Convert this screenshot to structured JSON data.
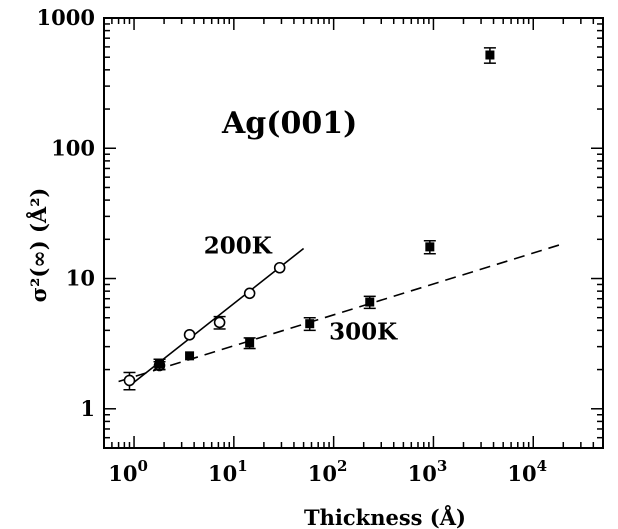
{
  "chart_data": {
    "type": "scatter",
    "title": "Ag(001)",
    "xlabel": "Thickness (Å)",
    "ylabel": "σ²(∞) (Å²)",
    "xscale": "log",
    "yscale": "log",
    "xlim": [
      0.5,
      50000
    ],
    "ylim": [
      0.5,
      1000
    ],
    "grid": false,
    "x_ticks": [
      {
        "value": 1,
        "mantissa": "10",
        "exp": "0"
      },
      {
        "value": 10,
        "mantissa": "10",
        "exp": "1"
      },
      {
        "value": 100,
        "mantissa": "10",
        "exp": "2"
      },
      {
        "value": 1000,
        "mantissa": "10",
        "exp": "3"
      },
      {
        "value": 10000,
        "mantissa": "10",
        "exp": "4"
      }
    ],
    "y_ticks": [
      {
        "value": 1,
        "label": "1"
      },
      {
        "value": 10,
        "label": "10"
      },
      {
        "value": 100,
        "label": "100"
      },
      {
        "value": 1000,
        "label": "1000"
      }
    ],
    "series": [
      {
        "name": "200K",
        "marker": "open-circle",
        "points": [
          {
            "x": 0.9,
            "y": 1.65,
            "err": 0.25
          },
          {
            "x": 1.8,
            "y": 2.15,
            "err": 0.15
          },
          {
            "x": 3.6,
            "y": 3.7,
            "err": 0
          },
          {
            "x": 7.2,
            "y": 4.6,
            "err": 0.5
          },
          {
            "x": 14.4,
            "y": 7.7,
            "err": 0
          },
          {
            "x": 28.8,
            "y": 12.1,
            "err": 0
          }
        ],
        "fit": {
          "style": "solid",
          "x": [
            0.9,
            50
          ],
          "y": [
            1.5,
            17
          ]
        },
        "label_at": {
          "x": 5,
          "y": 15.5
        }
      },
      {
        "name": "300K",
        "marker": "filled-square",
        "points": [
          {
            "x": 1.8,
            "y": 2.2,
            "err": 0.2
          },
          {
            "x": 3.6,
            "y": 2.55,
            "err": 0
          },
          {
            "x": 14.4,
            "y": 3.2,
            "err": 0.3
          },
          {
            "x": 57.6,
            "y": 4.5,
            "err": 0.5
          },
          {
            "x": 230,
            "y": 6.6,
            "err": 0.7
          },
          {
            "x": 920,
            "y": 17.5,
            "err": 2
          },
          {
            "x": 3680,
            "y": 520,
            "err": 70
          }
        ],
        "fit": {
          "style": "dashed",
          "x": [
            0.7,
            20000
          ],
          "y": [
            1.62,
            18.5
          ]
        },
        "label_at": {
          "x": 90,
          "y": 3.4
        }
      }
    ]
  }
}
